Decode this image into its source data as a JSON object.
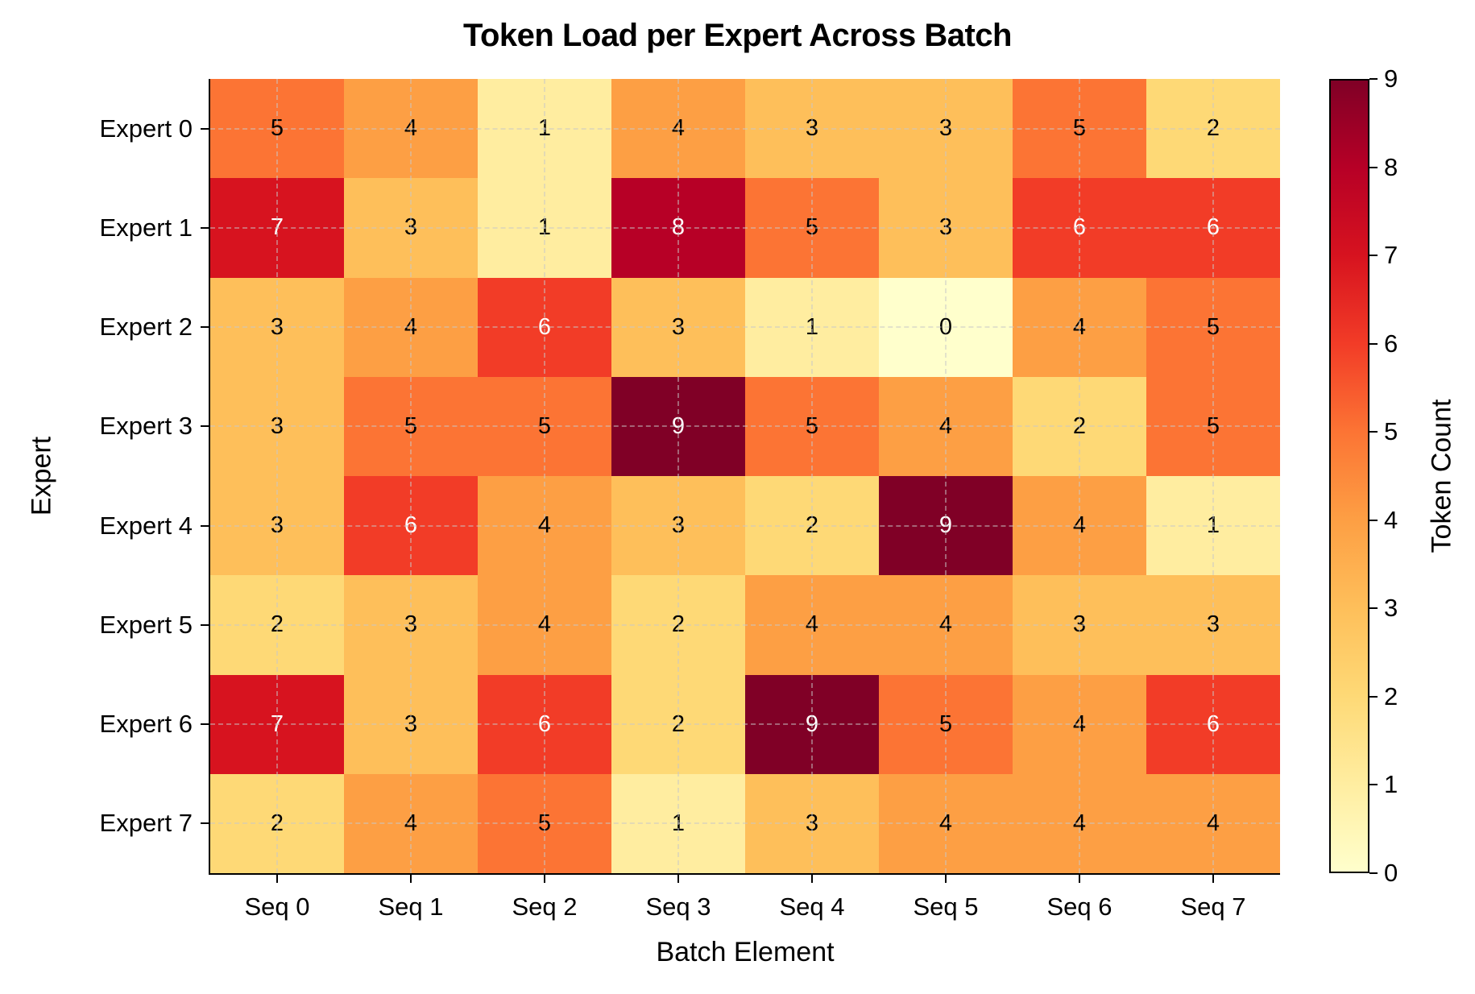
{
  "chart_data": {
    "type": "heatmap",
    "title": "Token Load per Expert Across Batch",
    "xlabel": "Batch Element",
    "ylabel": "Expert",
    "x_categories": [
      "Seq 0",
      "Seq 1",
      "Seq 2",
      "Seq 3",
      "Seq 4",
      "Seq 5",
      "Seq 6",
      "Seq 7"
    ],
    "y_categories": [
      "Expert 0",
      "Expert 1",
      "Expert 2",
      "Expert 3",
      "Expert 4",
      "Expert 5",
      "Expert 6",
      "Expert 7"
    ],
    "values": [
      [
        5,
        4,
        1,
        4,
        3,
        3,
        5,
        2
      ],
      [
        7,
        3,
        1,
        8,
        5,
        3,
        6,
        6
      ],
      [
        3,
        4,
        6,
        3,
        1,
        0,
        4,
        5
      ],
      [
        3,
        5,
        5,
        9,
        5,
        4,
        2,
        5
      ],
      [
        3,
        6,
        4,
        3,
        2,
        9,
        4,
        1
      ],
      [
        2,
        3,
        4,
        2,
        4,
        4,
        3,
        3
      ],
      [
        7,
        3,
        6,
        2,
        9,
        5,
        4,
        6
      ],
      [
        2,
        4,
        5,
        1,
        3,
        4,
        4,
        4
      ]
    ],
    "colormap": "YlOrRd",
    "vmin": 0,
    "vmax": 9,
    "colorbar": {
      "label": "Token Count",
      "ticks": [
        "0",
        "1",
        "2",
        "3",
        "4",
        "5",
        "6",
        "7",
        "8",
        "9"
      ]
    },
    "annotations": true,
    "grid": "dashed light gray"
  },
  "palette": [
    "#ffffcc",
    "#ffeda0",
    "#fed976",
    "#febf5a",
    "#fd9f44",
    "#fc7434",
    "#f23c27",
    "#d7131f",
    "#b70026",
    "#800026"
  ],
  "text_light_threshold": 6
}
